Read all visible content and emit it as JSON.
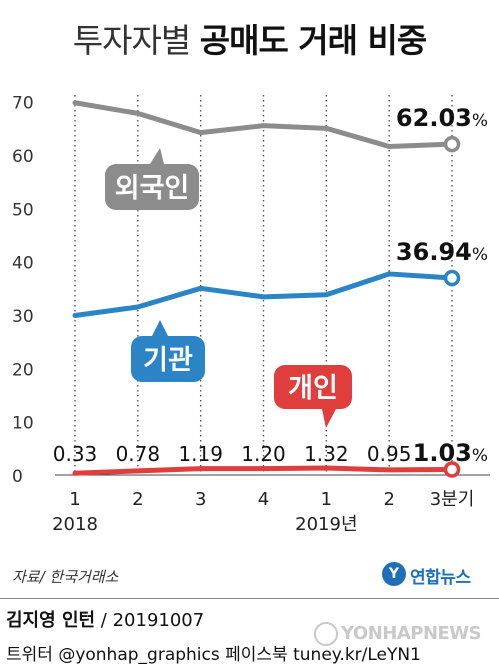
{
  "title": {
    "light": "투자자별",
    "bold": "공매도 거래 비중"
  },
  "chart_data": {
    "type": "line",
    "title": "투자자별 공매도 거래 비중",
    "categories": [
      "1",
      "2",
      "3",
      "4",
      "1",
      "2",
      "3분기"
    ],
    "year_labels": [
      {
        "index": 0,
        "label": "2018"
      },
      {
        "index": 4,
        "label": "2019년"
      }
    ],
    "yticks": [
      "0",
      "10",
      "20",
      "30",
      "40",
      "50",
      "60",
      "70"
    ],
    "ylim": [
      0,
      72
    ],
    "grid": "vertical-dotted",
    "series": [
      {
        "name": "외국인",
        "color": "#8c8c8c",
        "values": [
          69.8,
          67.8,
          64.2,
          65.5,
          65.0,
          61.6,
          62.03
        ],
        "end_label": "62.03",
        "unit": "%"
      },
      {
        "name": "기관",
        "color": "#2a84c6",
        "values": [
          29.9,
          31.5,
          35.0,
          33.4,
          33.8,
          37.7,
          36.94
        ],
        "end_label": "36.94",
        "unit": "%"
      },
      {
        "name": "개인",
        "color": "#e03d3d",
        "values": [
          0.33,
          0.78,
          1.19,
          1.2,
          1.32,
          0.95,
          1.03
        ],
        "data_labels": [
          "0.33",
          "0.78",
          "1.19",
          "1.20",
          "1.32",
          "0.95",
          "1.03"
        ],
        "unit": "%"
      }
    ]
  },
  "source": "자료/ 한국거래소",
  "logo": {
    "mark": "Y",
    "text": "연합뉴스"
  },
  "byline": {
    "name": "김지영 인턴",
    "date": " / 20191007"
  },
  "social": "트위터 @yonhap_graphics  페이스북 tuney.kr/LeYN1",
  "watermark": "YONHAPNEWS"
}
